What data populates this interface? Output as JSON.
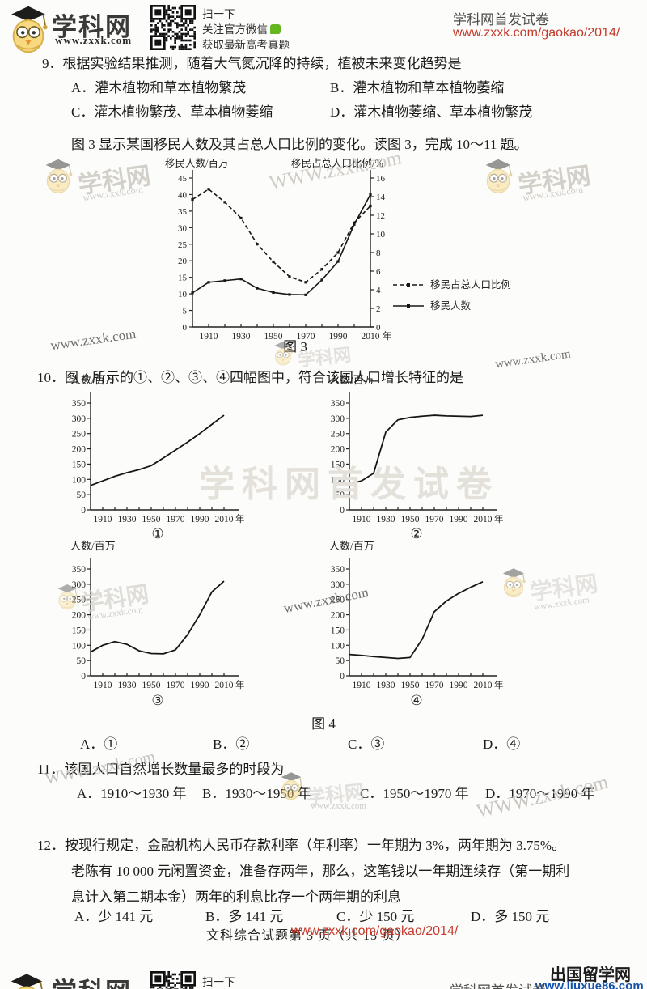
{
  "header": {
    "site_name": "学科网",
    "site_url": "www.zxxk.com",
    "qr_line1": "扫一下",
    "qr_line2": "关注官方微信",
    "qr_line3": "获取最新高考真题",
    "right_title": "学科网首发试卷",
    "right_url": "www.zxxk.com/gaokao/2014/"
  },
  "watermarks": {
    "brand": "学科网",
    "url": "www.zxxk.com",
    "url_caps": "WWW.zxxk.com",
    "banner": "学科网首发试卷"
  },
  "q9": {
    "stem": "9．根据实验结果推测，随着大气氮沉降的持续，植被未来变化趋势是",
    "options": [
      "A．灌木植物和草本植物繁茂",
      "B．灌木植物和草本植物萎缩",
      "C．灌木植物繁茂、草本植物萎缩",
      "D．灌木植物萎缩、草本植物繁茂"
    ]
  },
  "fig3_intro": "图 3 显示某国移民人数及其占总人口比例的变化。读图 3，完成 10～11 题。",
  "figures": {
    "fig3_caption": "图 3",
    "fig4_caption": "图 4"
  },
  "q10": {
    "stem": "10．图 4 所示的①、②、③、④四幅图中，符合该国人口增长特征的是",
    "answers": [
      "A．①",
      "B．②",
      "C．③",
      "D．④"
    ]
  },
  "q11": {
    "stem": "11．该国人口自然增长数量最多的时段为",
    "options": [
      "A．1910～1930 年",
      "B．1930～1950 年",
      "C．1950～1970 年",
      "D．1970～1990 年"
    ]
  },
  "q12": {
    "line1": "12．按现行规定，金融机构人民币存款利率（年利率）一年期为 3%，两年期为 3.75%。",
    "line2": "老陈有 10 000 元闲置资金，准备存两年，那么，这笔钱以一年期连续存（第一期利",
    "line3": "息计入第二期本金）两年的利息比存一个两年期的利息",
    "options": [
      "A．少 141 元",
      "B．多 141 元",
      "C．少 150 元",
      "D．多 150 元"
    ]
  },
  "footer": {
    "page_info": "文科综合试题第 3 页（共 15 页）",
    "red_url": "www.zxxk.com/gaokao/2014/"
  },
  "partner": {
    "name": "出国留学网",
    "url": "www.liuxue86.com"
  },
  "next_page": {
    "brand": "学科网",
    "qr_caption": "扫一下",
    "right_title": "学科网首发试卷"
  },
  "chart_data": [
    {
      "id": "fig3",
      "type": "line",
      "title": "图 3",
      "x": {
        "years": [
          1900,
          1910,
          1920,
          1930,
          1940,
          1950,
          1960,
          1970,
          1980,
          1990,
          2000,
          2010
        ],
        "label_years": [
          1910,
          1930,
          1950,
          1970,
          1990,
          2010
        ],
        "unit": "年"
      },
      "y_left": {
        "label": "移民人数/百万",
        "lim": [
          0,
          45
        ],
        "tick": 5
      },
      "y_right": {
        "label": "移民占总人口比例/%",
        "lim": [
          0,
          16
        ],
        "tick": 2
      },
      "series": [
        {
          "name": "移民占总人口比例",
          "axis": "right",
          "style": "dashed",
          "values": [
            13.7,
            14.8,
            13.4,
            11.7,
            8.9,
            7.0,
            5.4,
            4.8,
            6.2,
            8.0,
            11.2,
            13.0
          ]
        },
        {
          "name": "移民人数",
          "axis": "left",
          "style": "solid",
          "values": [
            10.3,
            13.5,
            14.0,
            14.5,
            11.7,
            10.4,
            9.8,
            9.7,
            14.2,
            19.8,
            31.0,
            40.0
          ]
        }
      ],
      "legend_position": "right"
    },
    {
      "id": "sub1",
      "type": "line",
      "label": "①",
      "ylabel": "人数/百万",
      "ylim": [
        0,
        350
      ],
      "ytick": 50,
      "x_years": [
        1900,
        1910,
        1920,
        1930,
        1940,
        1950,
        1960,
        1970,
        1980,
        1990,
        2000,
        2010
      ],
      "values": [
        80,
        95,
        110,
        122,
        132,
        145,
        170,
        196,
        222,
        250,
        280,
        310
      ]
    },
    {
      "id": "sub2",
      "type": "line",
      "label": "②",
      "ylabel": "人数/百万",
      "ylim": [
        0,
        350
      ],
      "ytick": 50,
      "x_years": [
        1900,
        1910,
        1920,
        1930,
        1940,
        1950,
        1960,
        1970,
        1980,
        1990,
        2000,
        2010
      ],
      "values": [
        85,
        95,
        120,
        255,
        295,
        303,
        307,
        310,
        308,
        307,
        306,
        310
      ]
    },
    {
      "id": "sub3",
      "type": "line",
      "label": "③",
      "ylabel": "人数/百万",
      "ylim": [
        0,
        350
      ],
      "ytick": 50,
      "x_years": [
        1900,
        1910,
        1920,
        1930,
        1940,
        1950,
        1960,
        1970,
        1980,
        1990,
        2000,
        2010
      ],
      "values": [
        78,
        100,
        112,
        103,
        82,
        73,
        72,
        85,
        135,
        200,
        275,
        310
      ]
    },
    {
      "id": "sub4",
      "type": "line",
      "label": "④",
      "ylabel": "人数/百万",
      "ylim": [
        0,
        350
      ],
      "ytick": 50,
      "x_years": [
        1900,
        1910,
        1920,
        1930,
        1940,
        1950,
        1960,
        1970,
        1980,
        1990,
        2000,
        2010
      ],
      "values": [
        70,
        67,
        63,
        60,
        57,
        60,
        120,
        210,
        245,
        270,
        290,
        308
      ]
    }
  ]
}
